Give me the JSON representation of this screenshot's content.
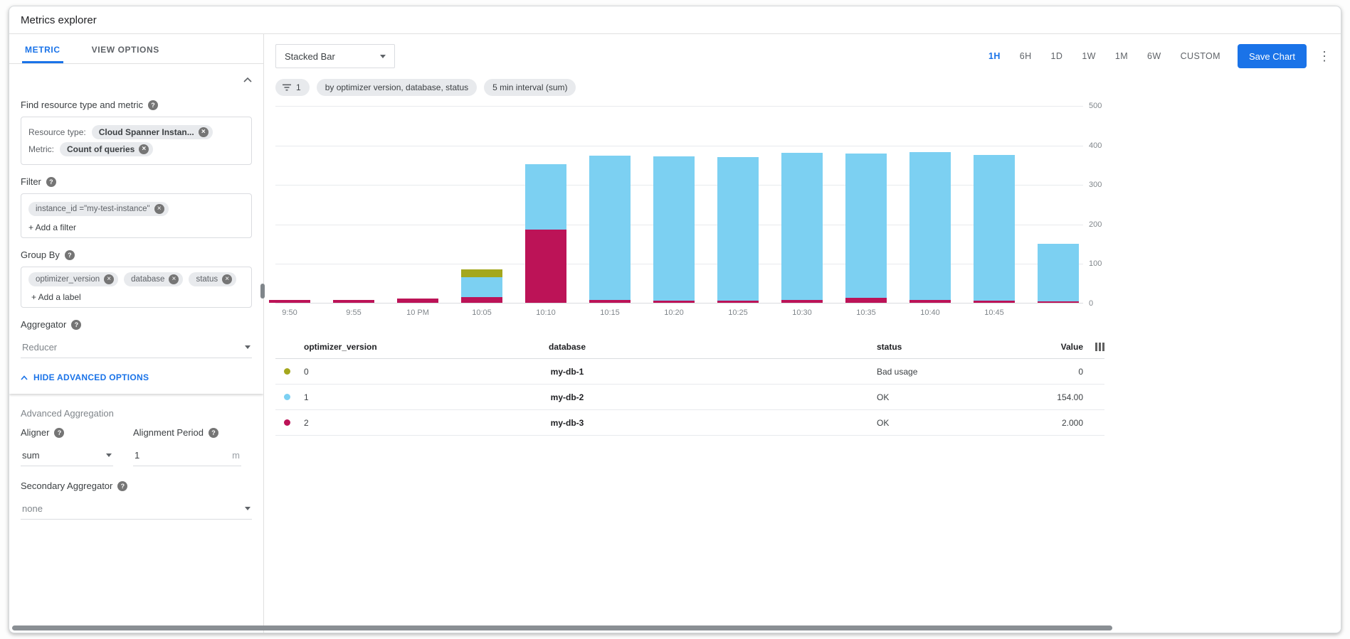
{
  "app": {
    "title": "Metrics explorer"
  },
  "icons": {
    "help": "?",
    "close": "×",
    "more_vertical": "⋮"
  },
  "sidebar": {
    "tabs": [
      {
        "label": "METRIC"
      },
      {
        "label": "VIEW OPTIONS"
      }
    ],
    "find_label": "Find resource type and metric",
    "resource_type_label": "Resource type:",
    "resource_type_chip": "Cloud Spanner Instan...",
    "metric_label": "Metric:",
    "metric_chip": "Count of queries",
    "filter_label": "Filter",
    "filter_chip": "instance_id =\"my-test-instance\"",
    "add_filter": "+ Add a filter",
    "group_by_label": "Group By",
    "group_chips": [
      "optimizer_version",
      "database",
      "status"
    ],
    "add_label": "+ Add a label",
    "aggregator_label": "Aggregator",
    "aggregator_value": "Reducer",
    "hide_advanced": "HIDE ADVANCED OPTIONS",
    "advanced_title": "Advanced Aggregation",
    "aligner_label": "Aligner",
    "aligner_value": "sum",
    "alignment_period_label": "Alignment Period",
    "alignment_period_value": "1",
    "alignment_period_unit": "m",
    "secondary_aggregator_label": "Secondary Aggregator",
    "secondary_aggregator_value": "none"
  },
  "toolbar": {
    "chart_type": "Stacked Bar",
    "ranges": [
      "1H",
      "6H",
      "1D",
      "1W",
      "1M",
      "6W",
      "CUSTOM"
    ],
    "active_range": "1H",
    "save_button": "Save Chart"
  },
  "chips": {
    "filter_count": "1",
    "group_chip": "by optimizer version, database, status",
    "interval_chip": "5 min interval (sum)"
  },
  "chart_data": {
    "type": "bar",
    "subtype": "stacked",
    "title": "",
    "xlabel": "",
    "ylabel": "",
    "ylim": [
      0,
      500
    ],
    "yticks": [
      0,
      100,
      200,
      300,
      400,
      500
    ],
    "y_axis_side": "right",
    "grid": true,
    "categories": [
      "9:50",
      "9:55",
      "10 PM",
      "10:05",
      "10:10",
      "10:15",
      "10:20",
      "10:25",
      "10:30",
      "10:35",
      "10:40",
      "10:45",
      ""
    ],
    "stack_order": "bottom-to-top",
    "series": [
      {
        "name": "optimizer_version 2 · my-db-3",
        "color": "#bc1357",
        "values": [
          8,
          8,
          10,
          15,
          185,
          8,
          6,
          6,
          8,
          12,
          8,
          6,
          4
        ]
      },
      {
        "name": "optimizer_version 1 · my-db-2",
        "color": "#7cd0f2",
        "values": [
          0,
          0,
          0,
          50,
          165,
          365,
          364,
          362,
          372,
          366,
          374,
          368,
          146
        ]
      },
      {
        "name": "optimizer_version 0 · my-db-1",
        "color": "#a4a71d",
        "values": [
          0,
          0,
          0,
          20,
          0,
          0,
          0,
          0,
          0,
          0,
          0,
          0,
          0
        ]
      }
    ]
  },
  "legend": {
    "headers": [
      "optimizer_version",
      "database",
      "status",
      "Value"
    ],
    "rows": [
      {
        "color": "#a4a71d",
        "optimizer_version": "0",
        "database": "my-db-1",
        "status": "Bad usage",
        "value": "0"
      },
      {
        "color": "#7cd0f2",
        "optimizer_version": "1",
        "database": "my-db-2",
        "status": "OK",
        "value": "154.00"
      },
      {
        "color": "#bc1357",
        "optimizer_version": "2",
        "database": "my-db-3",
        "status": "OK",
        "value": "2.000"
      }
    ]
  }
}
